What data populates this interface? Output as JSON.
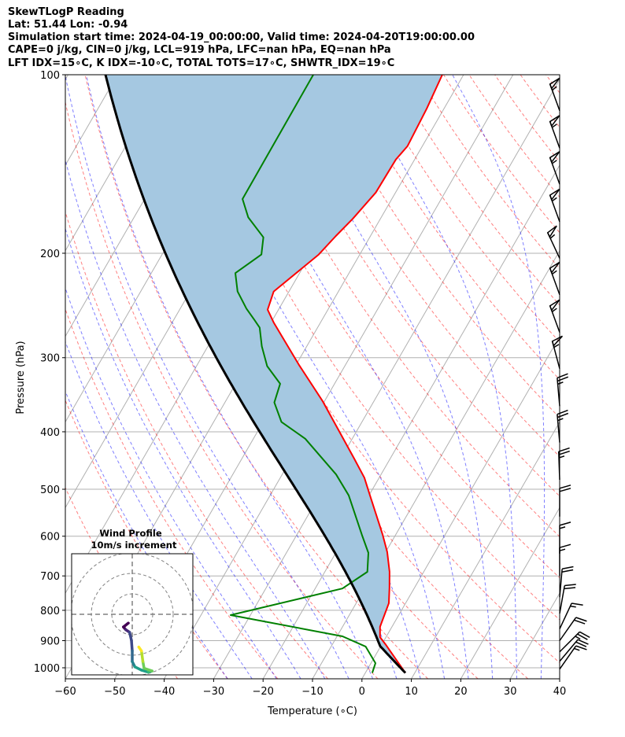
{
  "header": {
    "title": "SkewTLogP Reading",
    "location": "Lat: 51.44   Lon: -0.94",
    "times": "Simulation start time: 2024-04-19_00:00:00, Valid time: 2024-04-20T19:00:00.00",
    "indices1": "CAPE=0 j/kg, CIN=0 j/kg, LCL=919 hPa, LFC=nan hPa, EQ=nan hPa",
    "indices2": "LFT IDX=15∘C, K IDX=-10∘C, TOTAL TOTS=17∘C, SHWTR_IDX=19∘C"
  },
  "colors": {
    "temperature": "#ff0000",
    "dewpoint": "#008000",
    "parcel": "#000000",
    "cin_shade": "#a5c8e1",
    "dry_adiabat": "#ff0000",
    "moist_adiabat": "#0000ff",
    "grid": "#b0b0b0"
  },
  "chart_data": {
    "type": "line",
    "subtype": "skewt-logp",
    "xlabel": "Temperature (∘C)",
    "ylabel": "Pressure (hPa)",
    "xlim": [
      -60,
      40
    ],
    "ylim": [
      1044,
      100
    ],
    "xticks": [
      -60,
      -50,
      -40,
      -30,
      -20,
      -10,
      0,
      10,
      20,
      30,
      40
    ],
    "yticks": [
      100,
      200,
      300,
      400,
      500,
      600,
      700,
      800,
      900,
      1000
    ],
    "skew_deg": 30,
    "grid": true,
    "temperature": [
      [
        1020,
        8.1
      ],
      [
        915,
        0.9
      ],
      [
        888,
        -1.2
      ],
      [
        853,
        -2.4
      ],
      [
        778,
        -3.4
      ],
      [
        732,
        -5.1
      ],
      [
        689,
        -6.9
      ],
      [
        638,
        -9.7
      ],
      [
        597,
        -12.6
      ],
      [
        512,
        -19.8
      ],
      [
        478,
        -23.0
      ],
      [
        443,
        -27.4
      ],
      [
        355,
        -40.4
      ],
      [
        308,
        -49.5
      ],
      [
        262,
        -59.4
      ],
      [
        249,
        -62.2
      ],
      [
        232,
        -63.1
      ],
      [
        201,
        -58.3
      ],
      [
        187,
        -57.0
      ],
      [
        175,
        -55.6
      ],
      [
        158,
        -54.0
      ],
      [
        139,
        -53.8
      ],
      [
        132,
        -53.0
      ],
      [
        114,
        -53.5
      ],
      [
        100,
        -54.3
      ]
    ],
    "dewpoint": [
      [
        1020,
        1.4
      ],
      [
        982,
        0.9
      ],
      [
        921,
        -3.0
      ],
      [
        885,
        -8.9
      ],
      [
        815,
        -34.0
      ],
      [
        735,
        -14.5
      ],
      [
        689,
        -11.4
      ],
      [
        640,
        -13.4
      ],
      [
        597,
        -16.8
      ],
      [
        512,
        -24.1
      ],
      [
        472,
        -29.1
      ],
      [
        411,
        -39.5
      ],
      [
        385,
        -46.3
      ],
      [
        357,
        -50.0
      ],
      [
        332,
        -51.0
      ],
      [
        310,
        -55.7
      ],
      [
        287,
        -59.1
      ],
      [
        267,
        -61.7
      ],
      [
        259,
        -63.7
      ],
      [
        248,
        -66.6
      ],
      [
        232,
        -70.4
      ],
      [
        216,
        -73.0
      ],
      [
        201,
        -69.9
      ],
      [
        188,
        -71.5
      ],
      [
        174,
        -76.9
      ],
      [
        162,
        -80.2
      ],
      [
        100,
        -80.4
      ]
    ],
    "parcel": {
      "surface_p": 1020,
      "surface_t": 8.1,
      "lcl_p": 919
    },
    "dry_adiabats_theta_k": [
      233,
      243,
      253,
      263,
      273,
      283,
      293,
      303,
      313,
      323,
      333,
      343,
      353,
      363,
      373,
      383,
      393,
      403,
      413,
      423,
      433,
      443,
      453,
      463,
      473
    ],
    "moist_adiabats_t0_c": [
      -30,
      -25,
      -20,
      -15,
      -10,
      -5,
      0,
      5,
      10,
      15,
      20,
      25,
      30,
      35,
      40
    ],
    "wind_barbs": [
      {
        "p": 115,
        "speed_kt": 55,
        "dir": 340
      },
      {
        "p": 133,
        "speed_kt": 55,
        "dir": 340
      },
      {
        "p": 153,
        "speed_kt": 55,
        "dir": 340
      },
      {
        "p": 177,
        "speed_kt": 55,
        "dir": 340
      },
      {
        "p": 204,
        "speed_kt": 55,
        "dir": 335
      },
      {
        "p": 235,
        "speed_kt": 55,
        "dir": 340
      },
      {
        "p": 272,
        "speed_kt": 55,
        "dir": 340
      },
      {
        "p": 313,
        "speed_kt": 55,
        "dir": 345
      },
      {
        "p": 362,
        "speed_kt": 25,
        "dir": 355
      },
      {
        "p": 417,
        "speed_kt": 25,
        "dir": 355
      },
      {
        "p": 482,
        "speed_kt": 25,
        "dir": 358
      },
      {
        "p": 556,
        "speed_kt": 20,
        "dir": 0
      },
      {
        "p": 642,
        "speed_kt": 15,
        "dir": 0
      },
      {
        "p": 700,
        "speed_kt": 15,
        "dir": 0
      },
      {
        "p": 760,
        "speed_kt": 20,
        "dir": 5
      },
      {
        "p": 810,
        "speed_kt": 20,
        "dir": 10
      },
      {
        "p": 860,
        "speed_kt": 15,
        "dir": 25
      },
      {
        "p": 900,
        "speed_kt": 20,
        "dir": 35
      },
      {
        "p": 940,
        "speed_kt": 25,
        "dir": 45
      },
      {
        "p": 975,
        "speed_kt": 20,
        "dir": 40
      },
      {
        "p": 1005,
        "speed_kt": 15,
        "dir": 35
      }
    ],
    "hodograph": {
      "title": "Wind Profile",
      "subtitle": "10m/s increment",
      "ring_step_ms": 10,
      "rings": 3,
      "u": [
        -1.9,
        -4.3,
        -3.2,
        -1.3,
        -0.4,
        0,
        0,
        1.3,
        4.5,
        7.8,
        9.7,
        5.8,
        5.2,
        4.5,
        3.2
      ],
      "v": [
        -4.3,
        -6.2,
        -7.5,
        -8.8,
        -12.7,
        -17.9,
        -23.1,
        -25.7,
        -27.3,
        -28.3,
        -27.7,
        -26.4,
        -23.1,
        -17.9,
        -16.0
      ]
    }
  }
}
